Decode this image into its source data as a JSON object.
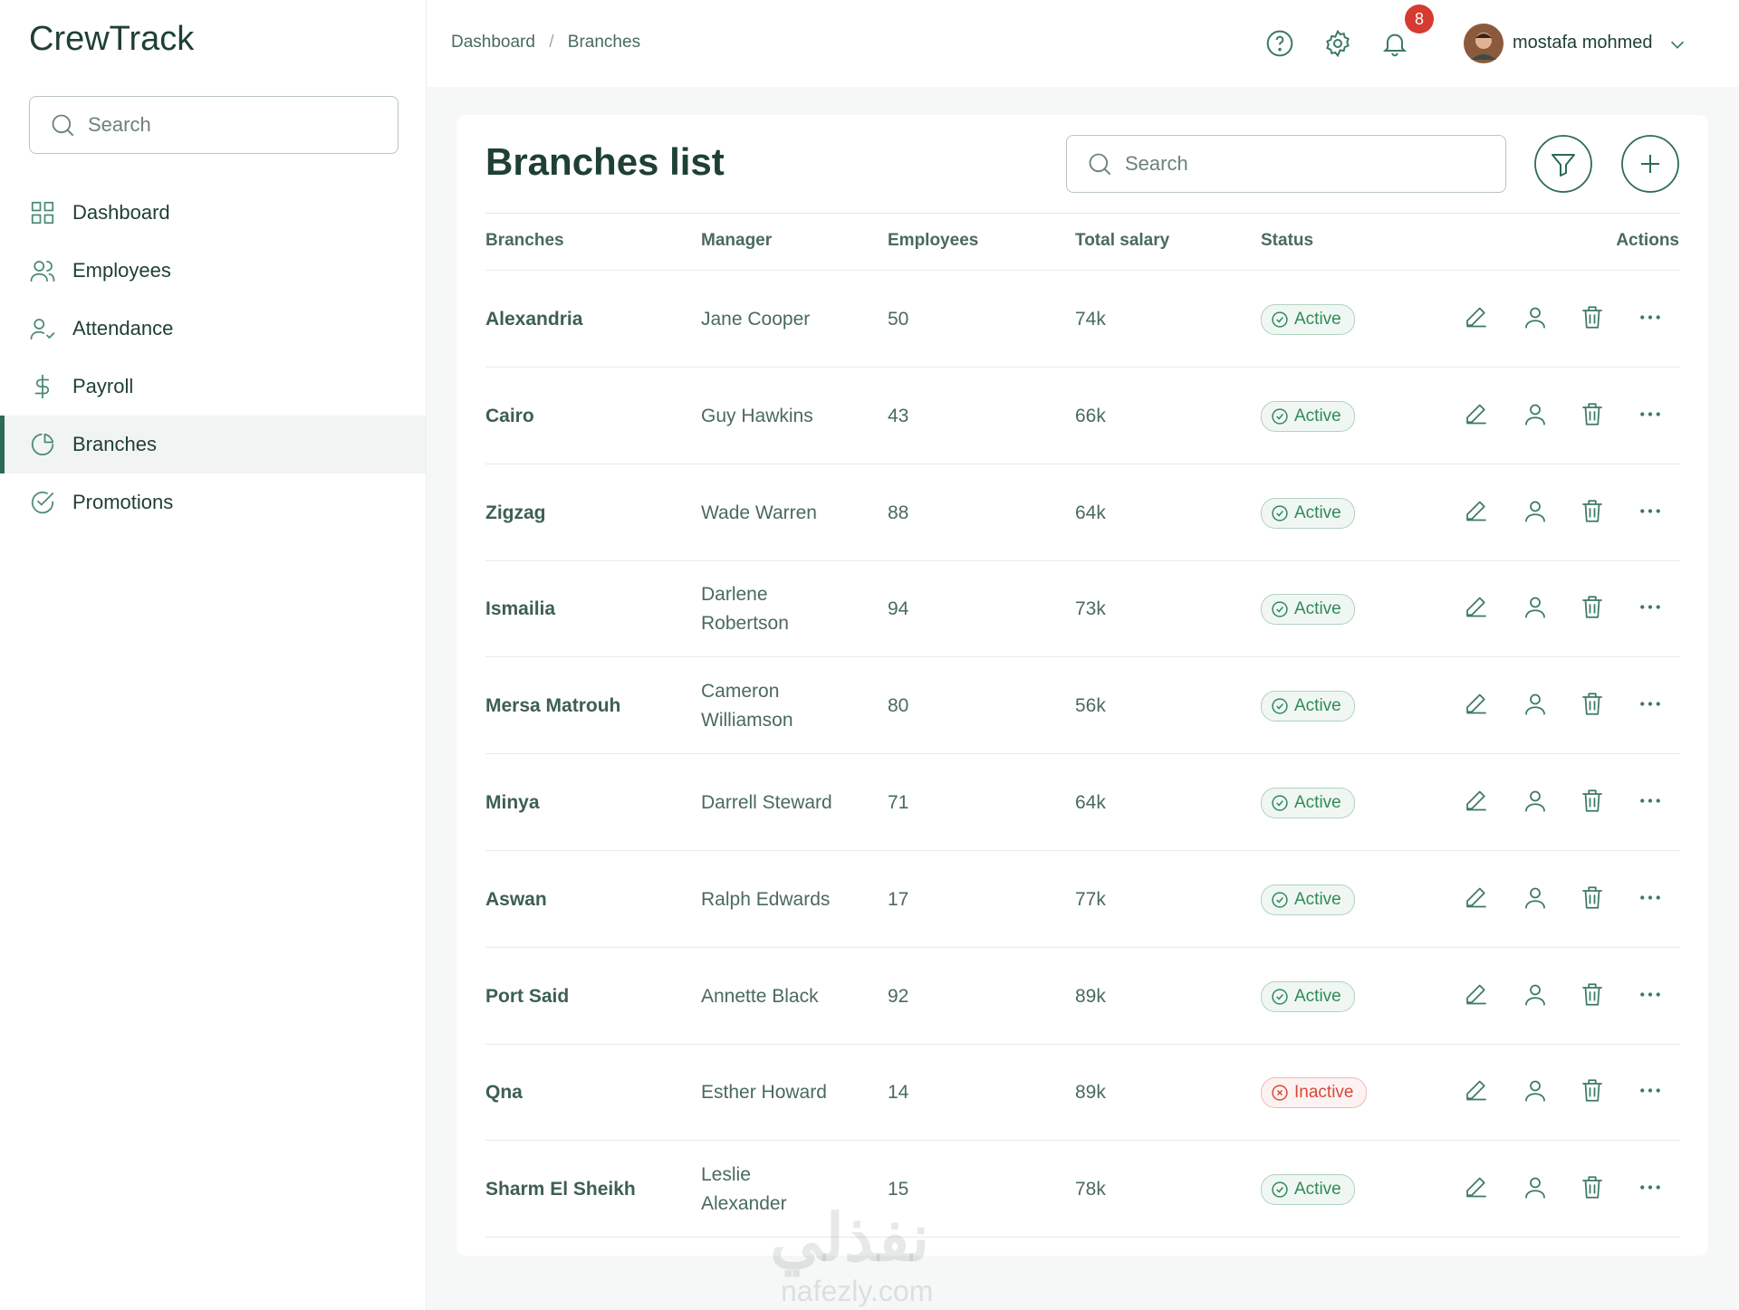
{
  "brand": "CrewTrack",
  "sidebar": {
    "search_placeholder": "Search",
    "nav": [
      {
        "label": "Dashboard",
        "icon": "grid"
      },
      {
        "label": "Employees",
        "icon": "users"
      },
      {
        "label": "Attendance",
        "icon": "user-check"
      },
      {
        "label": "Payroll",
        "icon": "dollar"
      },
      {
        "label": "Branches",
        "icon": "pie",
        "active": true
      },
      {
        "label": "Promotions",
        "icon": "check"
      }
    ]
  },
  "header": {
    "breadcrumb": [
      "Dashboard",
      "Branches"
    ],
    "notifications": 8,
    "user_name": "mostafa mohmed"
  },
  "page": {
    "title": "Branches list",
    "search_placeholder": "Search"
  },
  "table": {
    "columns": [
      "Branches",
      "Manager",
      "Employees",
      "Total salary",
      "Status",
      "Actions"
    ],
    "rows": [
      {
        "branch": "Alexandria",
        "manager": "Jane Cooper",
        "employees": 50,
        "total_salary": "74k",
        "status": "Active",
        "status_color": "#2f8a57"
      },
      {
        "branch": "Cairo",
        "manager": "Guy Hawkins",
        "employees": 43,
        "total_salary": "66k",
        "status": "Active",
        "status_color": "#2f8a57"
      },
      {
        "branch": "Zigzag",
        "manager": "Wade Warren",
        "employees": 88,
        "total_salary": "64k",
        "status": "Active",
        "status_color": "#2f8a57"
      },
      {
        "branch": "Ismailia",
        "manager": "Darlene Robertson",
        "employees": 94,
        "total_salary": "73k",
        "status": "Active",
        "status_color": "#2f8a57"
      },
      {
        "branch": "Mersa Matrouh",
        "manager": "Cameron Williamson",
        "employees": 80,
        "total_salary": "56k",
        "status": "Active",
        "status_color": "#2f8a57"
      },
      {
        "branch": "Minya",
        "manager": "Darrell Steward",
        "employees": 71,
        "total_salary": "64k",
        "status": "Active",
        "status_color": "#2f8a57"
      },
      {
        "branch": "Aswan",
        "manager": "Ralph Edwards",
        "employees": 17,
        "total_salary": "77k",
        "status": "Active",
        "status_color": "#2f8a57"
      },
      {
        "branch": "Port Said",
        "manager": "Annette Black",
        "employees": 92,
        "total_salary": "89k",
        "status": "Active",
        "status_color": "#2f8a57"
      },
      {
        "branch": "Qna",
        "manager": "Esther Howard",
        "employees": 14,
        "total_salary": "89k",
        "status": "Inactive",
        "status_color": "#d9483b"
      },
      {
        "branch": "Sharm El Sheikh",
        "manager": "Leslie Alexander",
        "employees": 15,
        "total_salary": "78k",
        "status": "Active",
        "status_color": "#2f8a57"
      }
    ]
  },
  "watermark": {
    "arabic": "نفذلي",
    "latin": "nafezly.com"
  }
}
